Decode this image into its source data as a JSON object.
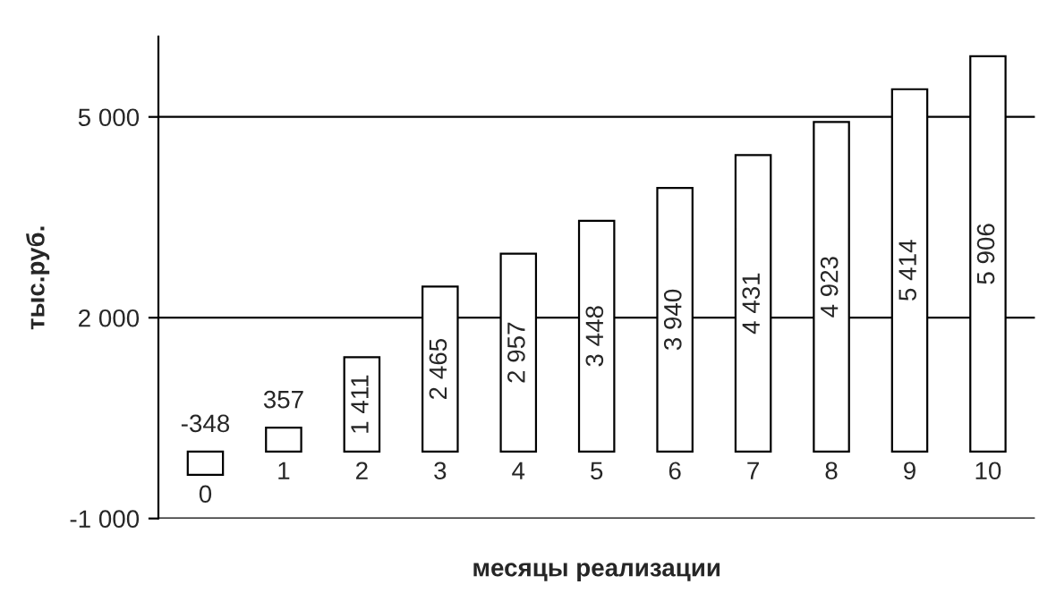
{
  "chart_data": {
    "type": "bar",
    "xlabel": "месяцы реализации",
    "ylabel": "тыс.руб.",
    "categories": [
      "0",
      "1",
      "2",
      "3",
      "4",
      "5",
      "6",
      "7",
      "8",
      "9",
      "10"
    ],
    "values": [
      -348,
      357,
      1411,
      2465,
      2957,
      3448,
      3940,
      4431,
      4923,
      5414,
      5906
    ],
    "value_labels": [
      "-348",
      "357",
      "1 411",
      "2 465",
      "2 957",
      "3 448",
      "3 940",
      "4 431",
      "4 923",
      "5 414",
      "5 906"
    ],
    "color": "#ffffff",
    "ylim": [
      -1000,
      6200
    ],
    "yticks": [
      {
        "value": -1000,
        "label": "-1 000"
      },
      {
        "value": 2000,
        "label": "2 000"
      },
      {
        "value": 5000,
        "label": "5 000"
      }
    ],
    "grid": "y"
  }
}
